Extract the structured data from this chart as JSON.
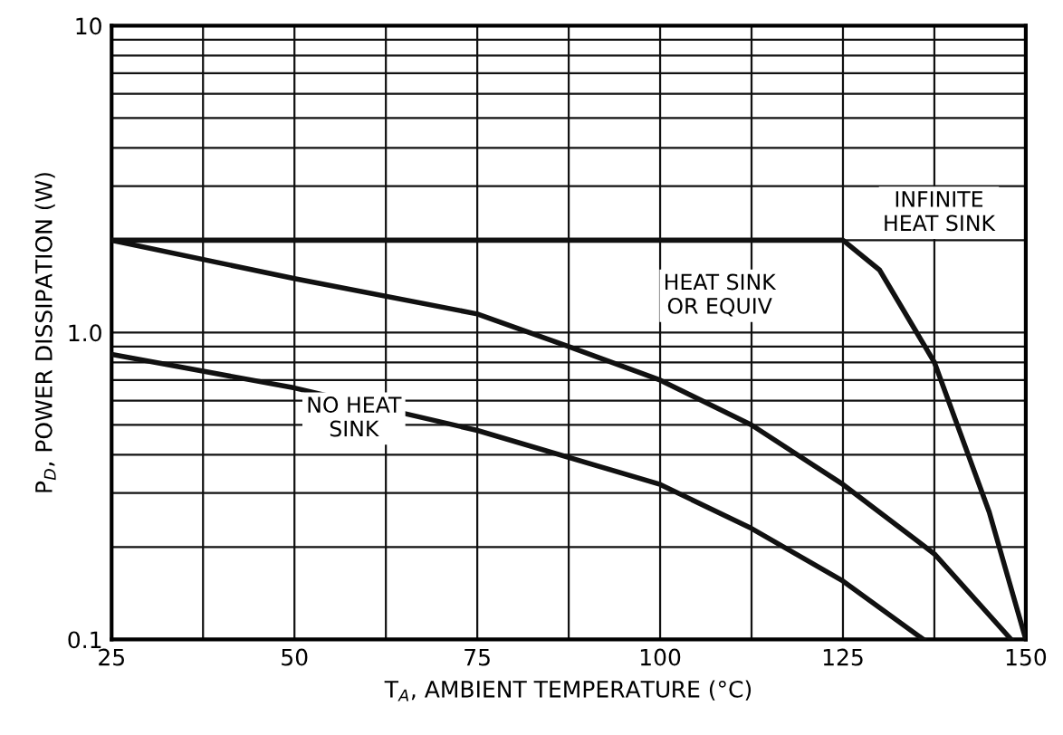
{
  "chart_data": {
    "type": "line",
    "xlabel": "T$_{A}$, AMBIENT TEMPERATURE (°C)",
    "ylabel": "P$_{D}$, POWER DISSIPATION (W)",
    "log": "y",
    "grid": true,
    "xlim": [
      25,
      150
    ],
    "ylim": [
      0.1,
      10
    ],
    "xticks": [
      25,
      {
        "value": 37.5,
        "label": null
      },
      50,
      {
        "value": 62.5,
        "label": null
      },
      75,
      {
        "value": 87.5,
        "label": null
      },
      100,
      {
        "value": 112.5,
        "label": null
      },
      125,
      {
        "value": 137.5,
        "label": null
      },
      150
    ],
    "yticks": [
      {
        "value": 0.1,
        "label": "0.1"
      },
      {
        "value": 0.2,
        "label": null
      },
      {
        "value": 0.3,
        "label": null
      },
      {
        "value": 0.4,
        "label": null
      },
      {
        "value": 0.5,
        "label": null
      },
      {
        "value": 0.6,
        "label": null
      },
      {
        "value": 0.7,
        "label": null
      },
      {
        "value": 0.8,
        "label": null
      },
      {
        "value": 0.9,
        "label": null
      },
      {
        "value": 1,
        "label": "1.0"
      },
      {
        "value": 2,
        "label": null
      },
      {
        "value": 3,
        "label": null
      },
      {
        "value": 4,
        "label": null
      },
      {
        "value": 5,
        "label": null
      },
      {
        "value": 6,
        "label": null
      },
      {
        "value": 7,
        "label": null
      },
      {
        "value": 8,
        "label": null
      },
      {
        "value": 9,
        "label": null
      },
      {
        "value": 10,
        "label": "10"
      }
    ],
    "series": [
      {
        "color": "#111111",
        "x": [
          25,
          125,
          130,
          137.5,
          145,
          150
        ],
        "values": [
          2.0,
          2.0,
          1.6,
          0.8,
          0.26,
          0.1
        ]
      },
      {
        "color": "#111111",
        "x": [
          25,
          50,
          75,
          87.5,
          100,
          112.5,
          125,
          137.5,
          148
        ],
        "values": [
          2.0,
          1.5,
          1.15,
          0.9,
          0.7,
          0.5,
          0.32,
          0.19,
          0.1
        ]
      },
      {
        "color": "#111111",
        "x": [
          25,
          50,
          75,
          100,
          112.5,
          125,
          136
        ],
        "values": [
          0.85,
          0.66,
          0.48,
          0.32,
          0.23,
          0.155,
          0.1
        ]
      }
    ],
    "annotations": [
      "INFINITE\nHEAT SINK",
      "HEAT SINK\nOR EQUIV",
      "NO HEAT\nSINK"
    ]
  }
}
